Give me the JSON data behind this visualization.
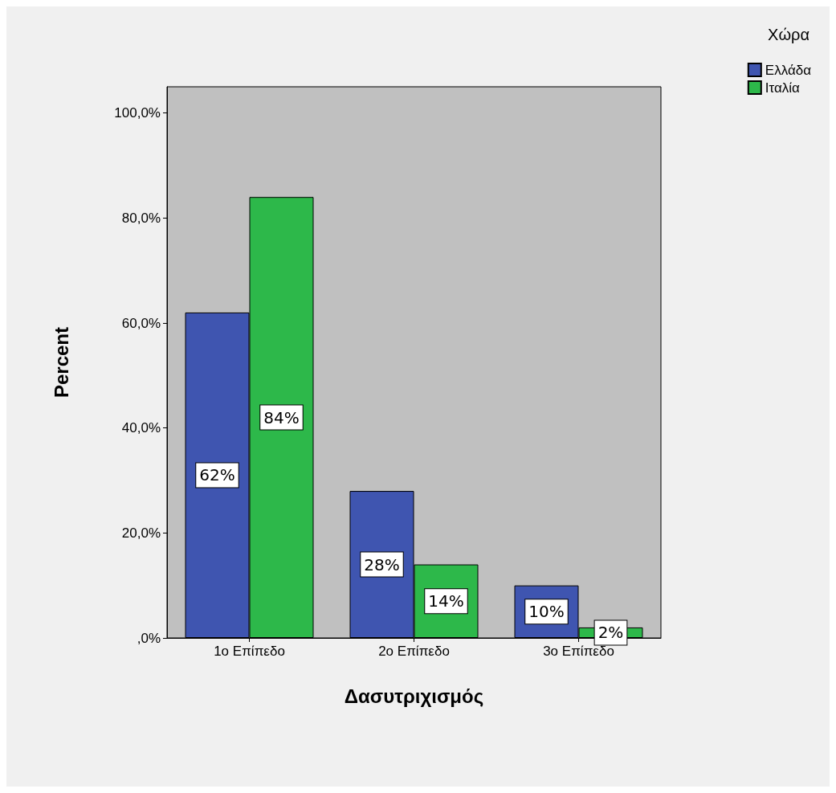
{
  "chart_data": {
    "type": "bar",
    "xlabel": "Δασυτριχισμός",
    "ylabel": "Percent",
    "legend_title": "Χώρα",
    "categories": [
      "1ο Επίπεδο",
      "2ο Επίπεδο",
      "3ο Επίπεδο"
    ],
    "series": [
      {
        "name": "Ελλάδα",
        "color": "#3f55b0",
        "values": [
          62,
          28,
          10
        ],
        "value_labels": [
          "62%",
          "28%",
          "10%"
        ]
      },
      {
        "name": "Ιταλία",
        "color": "#2db84a",
        "values": [
          84,
          14,
          2
        ],
        "value_labels": [
          "84%",
          "14%",
          "2%"
        ]
      }
    ],
    "ylim": [
      0,
      105
    ],
    "yticks": [
      {
        "value": 0,
        "label": ",0%"
      },
      {
        "value": 20,
        "label": "20,0%"
      },
      {
        "value": 40,
        "label": "40,0%"
      },
      {
        "value": 60,
        "label": "60,0%"
      },
      {
        "value": 80,
        "label": "80,0%"
      },
      {
        "value": 100,
        "label": "100,0%"
      }
    ],
    "grid": false,
    "legend": "top right"
  }
}
